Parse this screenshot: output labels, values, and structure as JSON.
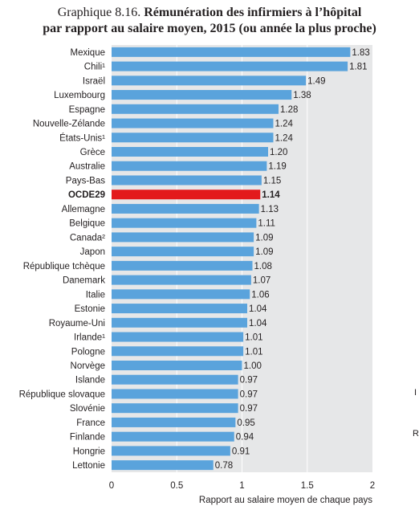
{
  "title": {
    "prefix": "Graphique 8.16.",
    "line1": "Rémunération des infirmiers à l’hôpital",
    "line2": "par rapport au salaire moyen, 2015 (ou année la plus proche)"
  },
  "colors": {
    "bar": "#5aa3dc",
    "highlight": "#e31a1c",
    "background": "#e6e7e8",
    "grid": "#ffffff",
    "text": "#231f20"
  },
  "stray_marks": [
    "I",
    "R"
  ],
  "chart_data": {
    "type": "bar",
    "orientation": "horizontal",
    "categories": [
      "Mexique",
      "Chili¹",
      "Israël",
      "Luxembourg",
      "Espagne",
      "Nouvelle-Zélande",
      "États-Unis¹",
      "Grèce",
      "Australie",
      "Pays-Bas",
      "OCDE29",
      "Allemagne",
      "Belgique",
      "Canada²",
      "Japon",
      "République tchèque",
      "Danemark",
      "Italie",
      "Estonie",
      "Royaume-Uni",
      "Irlande¹",
      "Pologne",
      "Norvège",
      "Islande",
      "République slovaque",
      "Slovénie",
      "France",
      "Finlande",
      "Hongrie",
      "Lettonie"
    ],
    "values": [
      1.83,
      1.81,
      1.49,
      1.38,
      1.28,
      1.24,
      1.24,
      1.2,
      1.19,
      1.15,
      1.14,
      1.13,
      1.11,
      1.09,
      1.09,
      1.08,
      1.07,
      1.06,
      1.04,
      1.04,
      1.01,
      1.01,
      1.0,
      0.97,
      0.97,
      0.97,
      0.95,
      0.94,
      0.91,
      0.78
    ],
    "value_labels": [
      "1.83",
      "1.81",
      "1.49",
      "1.38",
      "1.28",
      "1.24",
      "1.24",
      "1.20",
      "1.19",
      "1.15",
      "1.14",
      "1.13",
      "1.11",
      "1.09",
      "1.09",
      "1.08",
      "1.07",
      "1.06",
      "1.04",
      "1.04",
      "1.01",
      "1.01",
      "1.00",
      "0.97",
      "0.97",
      "0.97",
      "0.95",
      "0.94",
      "0.91",
      "0.78"
    ],
    "highlight": "OCDE29",
    "xlabel": "Rapport au salaire moyen de chaque pays",
    "xlim": [
      0,
      2
    ],
    "xticks": [
      0,
      0.5,
      1,
      1.5,
      2
    ],
    "xtick_labels": [
      "0",
      "0.5",
      "1",
      "1.5",
      "2"
    ],
    "grid": true
  }
}
